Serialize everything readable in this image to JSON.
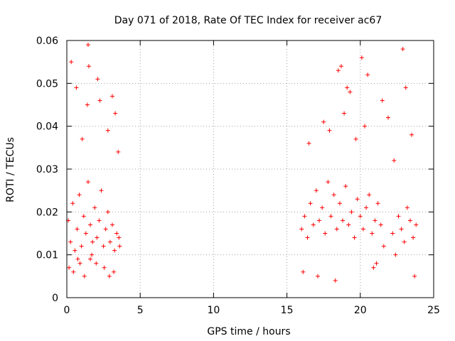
{
  "chart_data": {
    "type": "scatter",
    "title": "Day 071 of 2018, Rate Of TEC Index for receiver ac67",
    "xlabel": "GPS time / hours",
    "ylabel": "ROTI / TECUs",
    "xlim": [
      0,
      25
    ],
    "ylim": [
      0,
      0.06
    ],
    "x_ticks": [
      0,
      5,
      10,
      15,
      20,
      25
    ],
    "x_tick_labels": [
      "0",
      "5",
      "10",
      "15",
      "20",
      "25"
    ],
    "y_ticks": [
      0,
      0.01,
      0.02,
      0.03,
      0.04,
      0.05,
      0.06
    ],
    "y_tick_labels": [
      "0",
      "0.01",
      "0.02",
      "0.03",
      "0.04",
      "0.05",
      "0.06"
    ],
    "grid": true,
    "marker": "+",
    "color": "#ff0000",
    "series": [
      {
        "name": "ROTI",
        "x": [
          0.1,
          0.25,
          0.4,
          0.55,
          0.7,
          0.85,
          1.0,
          1.15,
          1.3,
          1.45,
          1.6,
          1.75,
          1.9,
          2.05,
          2.2,
          2.35,
          2.5,
          2.65,
          2.8,
          2.95,
          3.1,
          3.25,
          3.4,
          3.55,
          0.3,
          0.65,
          1.45,
          1.5,
          1.4,
          2.1,
          2.25,
          3.1,
          3.3,
          3.5,
          2.8,
          1.05,
          0.9,
          1.6,
          2.55,
          0.45,
          1.2,
          3.2,
          2.0,
          1.7,
          0.15,
          0.75,
          2.9,
          3.6,
          16.0,
          16.2,
          16.4,
          16.6,
          16.8,
          17.0,
          17.2,
          17.4,
          17.6,
          17.8,
          18.0,
          18.2,
          18.4,
          18.6,
          18.8,
          19.0,
          19.2,
          19.4,
          19.6,
          19.8,
          20.0,
          20.2,
          20.4,
          20.6,
          20.8,
          21.0,
          21.2,
          21.4,
          21.6,
          22.2,
          22.4,
          22.6,
          22.8,
          23.0,
          23.2,
          23.4,
          23.6,
          23.8,
          18.5,
          18.7,
          19.1,
          19.3,
          20.1,
          20.5,
          21.5,
          22.9,
          23.1,
          18.9,
          17.5,
          17.9,
          16.5,
          20.3,
          21.9,
          22.3,
          23.5,
          19.7,
          16.1,
          17.1,
          18.3,
          20.9,
          21.1,
          23.7
        ],
        "y": [
          0.018,
          0.013,
          0.022,
          0.011,
          0.016,
          0.024,
          0.012,
          0.019,
          0.015,
          0.027,
          0.017,
          0.013,
          0.021,
          0.014,
          0.018,
          0.025,
          0.012,
          0.016,
          0.02,
          0.013,
          0.017,
          0.011,
          0.015,
          0.014,
          0.055,
          0.049,
          0.059,
          0.054,
          0.045,
          0.051,
          0.046,
          0.047,
          0.043,
          0.034,
          0.039,
          0.037,
          0.008,
          0.009,
          0.007,
          0.006,
          0.005,
          0.006,
          0.008,
          0.01,
          0.007,
          0.009,
          0.005,
          0.012,
          0.016,
          0.019,
          0.014,
          0.022,
          0.017,
          0.025,
          0.018,
          0.021,
          0.015,
          0.027,
          0.019,
          0.024,
          0.016,
          0.022,
          0.018,
          0.026,
          0.017,
          0.02,
          0.014,
          0.023,
          0.019,
          0.016,
          0.021,
          0.024,
          0.015,
          0.018,
          0.022,
          0.017,
          0.012,
          0.015,
          0.01,
          0.019,
          0.016,
          0.013,
          0.021,
          0.018,
          0.014,
          0.017,
          0.053,
          0.054,
          0.049,
          0.048,
          0.056,
          0.052,
          0.046,
          0.058,
          0.049,
          0.043,
          0.041,
          0.039,
          0.036,
          0.04,
          0.042,
          0.032,
          0.038,
          0.037,
          0.006,
          0.005,
          0.004,
          0.007,
          0.008,
          0.005
        ]
      }
    ]
  }
}
